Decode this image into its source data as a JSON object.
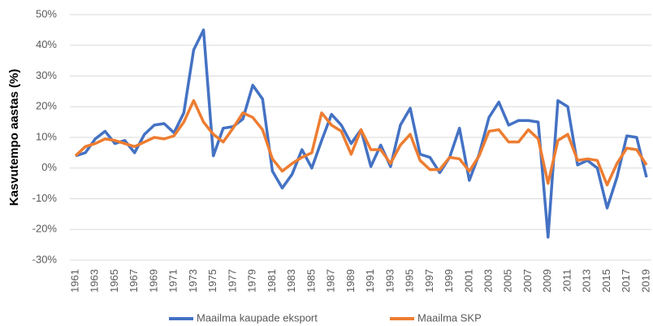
{
  "chart_data": {
    "type": "line",
    "y_label": "Kasvutempo aastas (%)",
    "categories": [
      "1961",
      null,
      "1963",
      null,
      "1965",
      null,
      "1967",
      null,
      "1969",
      null,
      "1971",
      null,
      "1973",
      null,
      "1975",
      null,
      "1977",
      null,
      "1979",
      null,
      "1981",
      null,
      "1983",
      null,
      "1985",
      null,
      "1987",
      null,
      "1989",
      null,
      "1991",
      null,
      "1993",
      null,
      "1995",
      null,
      "1997",
      null,
      "1999",
      null,
      "2001",
      null,
      "2003",
      null,
      "2005",
      null,
      "2007",
      null,
      "2009",
      null,
      "2011",
      null,
      "2013",
      null,
      "2015",
      null,
      "2017",
      null,
      "2019"
    ],
    "series": [
      {
        "name": "Maailma kaupade eksport",
        "color": "#4472c4",
        "values": [
          4,
          5,
          9.5,
          12,
          8,
          9,
          5,
          11,
          14,
          14.5,
          11.5,
          18,
          38.5,
          45,
          4,
          13,
          13.5,
          16,
          27,
          22.5,
          -1,
          -6.5,
          -2,
          6,
          0,
          9,
          17.5,
          14,
          8,
          12.5,
          0.5,
          7.5,
          0.5,
          14,
          19.5,
          4.5,
          3.5,
          -1.5,
          3.5,
          13,
          -4,
          4.5,
          16.5,
          21.5,
          14,
          15.5,
          15.5,
          15,
          -22.5,
          22,
          20,
          1,
          2.5,
          0,
          -13,
          -3,
          10.5,
          10,
          -3
        ]
      },
      {
        "name": "Maailma SKP",
        "color": "#ed7d31",
        "values": [
          4,
          7,
          8,
          9.5,
          9,
          8,
          7,
          8.5,
          10,
          9.5,
          10.5,
          15,
          22,
          15,
          11,
          8.5,
          13,
          18,
          16.5,
          12.5,
          3,
          -1,
          1.5,
          3.5,
          5,
          18,
          14,
          12,
          4.5,
          12.5,
          6,
          6,
          1.5,
          7.5,
          11,
          2.5,
          -0.5,
          -0.5,
          3.5,
          3,
          -1,
          4,
          12,
          12.5,
          8.5,
          8.5,
          12.5,
          9.5,
          -5,
          9,
          11,
          2.5,
          3,
          2.5,
          -5.5,
          1.5,
          6.5,
          6,
          1
        ]
      }
    ],
    "ylim": [
      -30,
      50
    ],
    "yticks": [
      {
        "value": -30,
        "label": "-30%"
      },
      {
        "value": -20,
        "label": "-20%"
      },
      {
        "value": -10,
        "label": "-10%"
      },
      {
        "value": 0,
        "label": "0%"
      },
      {
        "value": 10,
        "label": "10%"
      },
      {
        "value": 20,
        "label": "20%"
      },
      {
        "value": 30,
        "label": "30%"
      },
      {
        "value": 40,
        "label": "40%"
      },
      {
        "value": 50,
        "label": "50%"
      }
    ],
    "grid": true,
    "legend": "bottom"
  }
}
